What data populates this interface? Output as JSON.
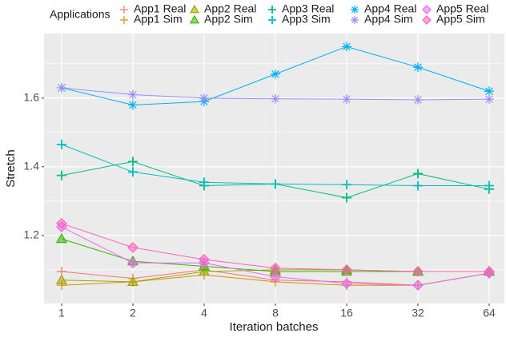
{
  "chart_data": {
    "type": "line",
    "x_label": "Iteration batches",
    "y_label": "Stretch",
    "legend_title": "Applications",
    "legend": "top",
    "x": [
      1,
      2,
      4,
      8,
      16,
      32,
      64
    ],
    "xscale": "log",
    "xlim": [
      0.843,
      74.2
    ],
    "xticks": [
      1,
      2,
      4,
      8,
      16,
      32,
      64
    ],
    "ylim": [
      1.002,
      1.788
    ],
    "yticks": [
      1.2,
      1.4,
      1.6
    ],
    "grid": true,
    "series": [
      {
        "name": "App1 Real",
        "color": "#F8766D",
        "marker": "plus",
        "values": [
          1.095,
          1.075,
          1.1,
          1.07,
          1.065,
          1.055,
          1.09
        ]
      },
      {
        "name": "App1 Sim",
        "color": "#D89000",
        "marker": "plus",
        "values": [
          1.055,
          1.065,
          1.085,
          1.065,
          1.055,
          1.055,
          1.09
        ]
      },
      {
        "name": "App2 Real",
        "color": "#A3A500",
        "marker": "triangle",
        "values": [
          1.07,
          1.065,
          1.095,
          1.1,
          1.1,
          1.095,
          1.095
        ]
      },
      {
        "name": "App2 Sim",
        "color": "#39B600",
        "marker": "triangle",
        "values": [
          1.19,
          1.125,
          1.11,
          1.095,
          1.095,
          1.095,
          1.095
        ]
      },
      {
        "name": "App3 Real",
        "color": "#00BF7D",
        "marker": "cross",
        "values": [
          1.375,
          1.415,
          1.345,
          1.35,
          1.31,
          1.38,
          1.335
        ]
      },
      {
        "name": "App3 Sim",
        "color": "#00BFC4",
        "marker": "cross",
        "values": [
          1.465,
          1.385,
          1.355,
          1.35,
          1.348,
          1.345,
          1.345
        ]
      },
      {
        "name": "App4 Real",
        "color": "#00B0F6",
        "marker": "asterisk",
        "values": [
          1.63,
          1.58,
          1.59,
          1.67,
          1.75,
          1.69,
          1.62
        ]
      },
      {
        "name": "App4 Sim",
        "color": "#9590FF",
        "marker": "asterisk",
        "values": [
          1.63,
          1.61,
          1.6,
          1.598,
          1.597,
          1.595,
          1.597
        ]
      },
      {
        "name": "App5 Real",
        "color": "#E76BF3",
        "marker": "diamond",
        "values": [
          1.225,
          1.12,
          1.12,
          1.08,
          1.06,
          1.055,
          1.09
        ]
      },
      {
        "name": "App5 Sim",
        "color": "#FF62BC",
        "marker": "diamond",
        "values": [
          1.235,
          1.165,
          1.13,
          1.105,
          1.1,
          1.095,
          1.095
        ]
      }
    ]
  }
}
